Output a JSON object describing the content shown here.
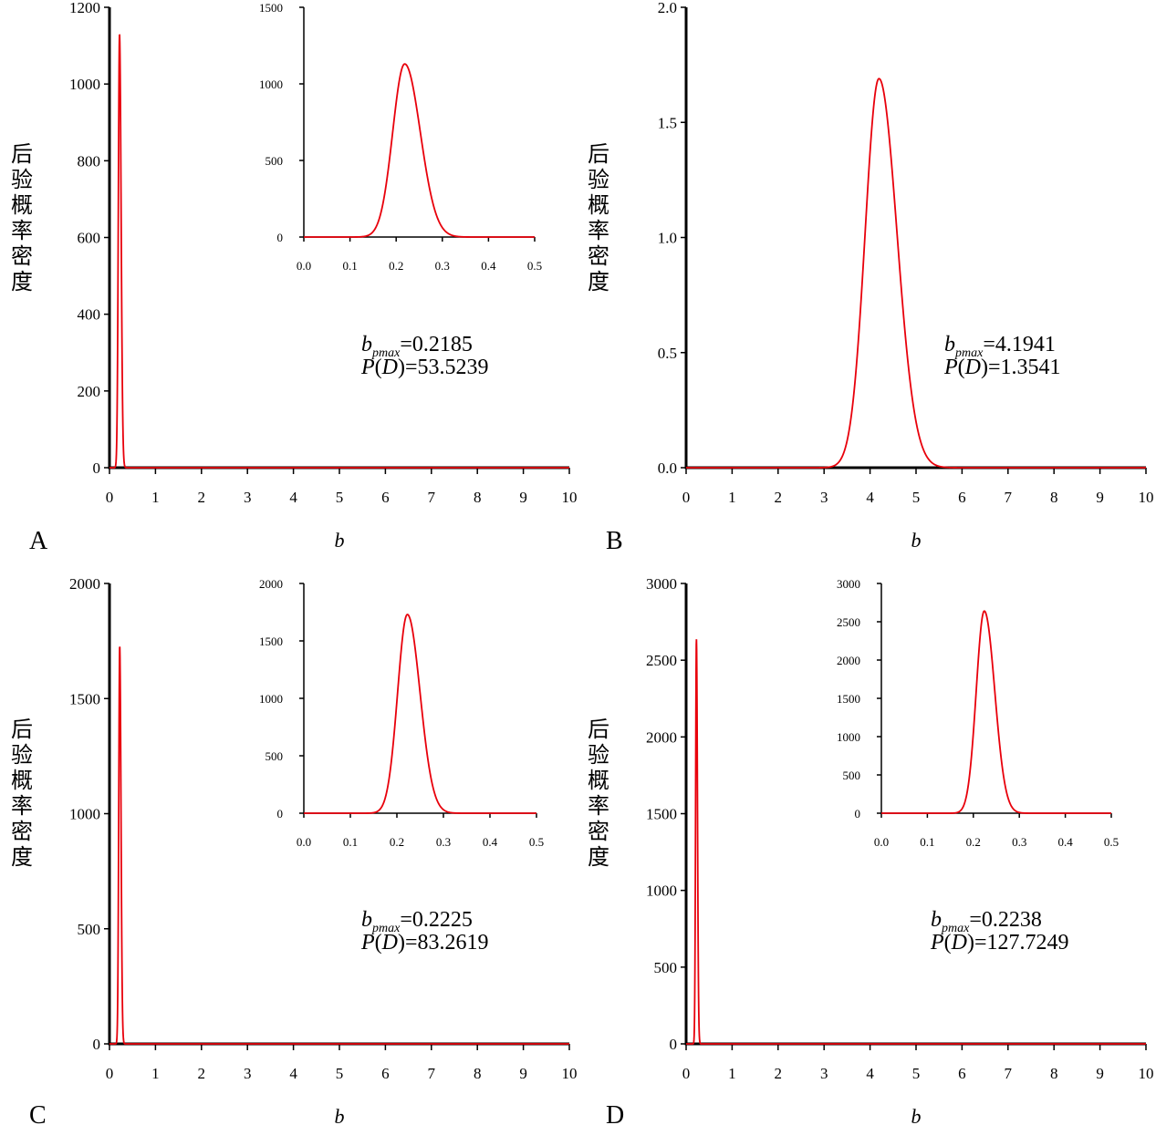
{
  "colors": {
    "curve": "#e8000b",
    "axis": "#000000"
  },
  "chart_data": [
    {
      "panel": "A",
      "type": "line",
      "xlabel": "b",
      "ylabel": "后验概率密度",
      "xlim": [
        0,
        10
      ],
      "ylim": [
        0,
        1200
      ],
      "xticks": [
        0,
        1,
        2,
        3,
        4,
        5,
        6,
        7,
        8,
        9,
        10
      ],
      "yticks": [
        0,
        200,
        400,
        600,
        800,
        1000,
        1200
      ],
      "peak": {
        "mode": 0.2185,
        "sigma": 0.026,
        "height": 1130
      },
      "annotation": {
        "b_label": "b",
        "b_sub": "pmax",
        "b_value": "=0.2185",
        "pd_prefix": "P(",
        "pd_var": "D",
        "pd_suffix": ")=53.5239"
      },
      "inset": {
        "xlim": [
          0,
          0.5
        ],
        "ylim": [
          0,
          1500
        ],
        "xticks": [
          "0.0",
          "0.1",
          "0.2",
          "0.3",
          "0.4",
          "0.5"
        ],
        "yticks": [
          0,
          500,
          1000,
          1500
        ]
      }
    },
    {
      "panel": "B",
      "type": "line",
      "xlabel": "b",
      "ylabel": "后验概率密度",
      "xlim": [
        0,
        10
      ],
      "ylim": [
        0,
        2.0
      ],
      "xticks": [
        0,
        1,
        2,
        3,
        4,
        5,
        6,
        7,
        8,
        9,
        10
      ],
      "yticks": [
        "0.0",
        "0.5",
        "1.0",
        "1.5",
        "2.0"
      ],
      "peak": {
        "mode": 4.1941,
        "sigma": 0.3,
        "height": 1.69
      },
      "annotation": {
        "b_label": "b",
        "b_sub": "pmax",
        "b_value": "=4.1941",
        "pd_prefix": "P(",
        "pd_var": "D",
        "pd_suffix": ")=1.3541"
      },
      "inset": null
    },
    {
      "panel": "C",
      "type": "line",
      "xlabel": "b",
      "ylabel": "后验概率密度",
      "xlim": [
        0,
        10
      ],
      "ylim": [
        0,
        2000
      ],
      "xticks": [
        0,
        1,
        2,
        3,
        4,
        5,
        6,
        7,
        8,
        9,
        10
      ],
      "yticks": [
        0,
        500,
        1000,
        1500,
        2000
      ],
      "peak": {
        "mode": 0.2225,
        "sigma": 0.021,
        "height": 1730
      },
      "annotation": {
        "b_label": "b",
        "b_sub": "pmax",
        "b_value": "=0.2225",
        "pd_prefix": "P(",
        "pd_var": "D",
        "pd_suffix": ")=83.2619"
      },
      "inset": {
        "xlim": [
          0,
          0.5
        ],
        "ylim": [
          0,
          2000
        ],
        "xticks": [
          "0.0",
          "0.1",
          "0.2",
          "0.3",
          "0.4",
          "0.5"
        ],
        "yticks": [
          0,
          500,
          1000,
          1500,
          2000
        ]
      }
    },
    {
      "panel": "D",
      "type": "line",
      "xlabel": "b",
      "ylabel": "后验概率密度",
      "xlim": [
        0,
        10
      ],
      "ylim": [
        0,
        3000
      ],
      "xticks": [
        0,
        1,
        2,
        3,
        4,
        5,
        6,
        7,
        8,
        9,
        10
      ],
      "yticks": [
        0,
        500,
        1000,
        1500,
        2000,
        2500,
        3000
      ],
      "peak": {
        "mode": 0.2238,
        "sigma": 0.0175,
        "height": 2640
      },
      "annotation": {
        "b_label": "b",
        "b_sub": "pmax",
        "b_value": "=0.2238",
        "pd_prefix": "P(",
        "pd_var": "D",
        "pd_suffix": ")=127.7249"
      },
      "inset": {
        "xlim": [
          0,
          0.5
        ],
        "ylim": [
          0,
          3000
        ],
        "xticks": [
          "0.0",
          "0.1",
          "0.2",
          "0.3",
          "0.4",
          "0.5"
        ],
        "yticks": [
          0,
          500,
          1000,
          1500,
          2000,
          2500,
          3000
        ]
      }
    }
  ]
}
